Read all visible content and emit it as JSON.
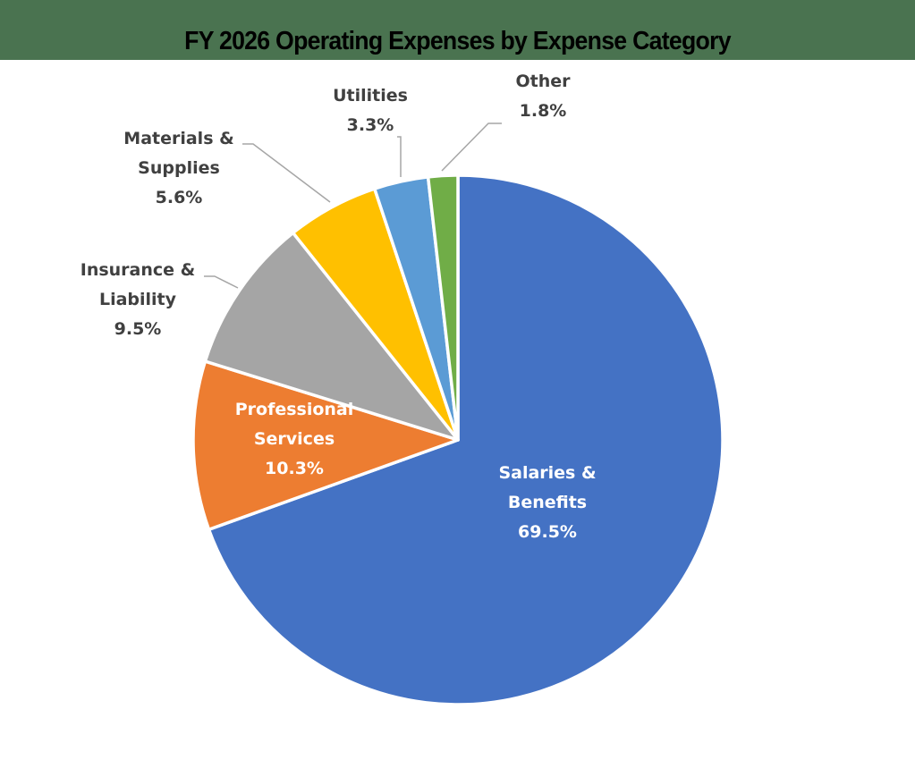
{
  "title": "FY 2026 Operating Expenses by Expense Category",
  "colors": {
    "title_band": "#4a7350",
    "leader": "#a6a6a6",
    "outside_text": "#404040",
    "inside_text": "#ffffff"
  },
  "chart_data": {
    "type": "pie",
    "title": "FY 2026 Operating Expenses by Expense Category",
    "start_angle": "12 o'clock, clockwise",
    "legend": "none (data labels on slices)",
    "categories": [
      "Salaries & Benefits",
      "Professional Services",
      "Insurance & Liability",
      "Materials & Supplies",
      "Utilities",
      "Other"
    ],
    "values": [
      69.5,
      10.3,
      9.5,
      5.6,
      3.3,
      1.8
    ],
    "colors": [
      "#4472c4",
      "#ed7d31",
      "#a5a5a5",
      "#ffc000",
      "#5b9bd5",
      "#70ad47"
    ],
    "labels": [
      {
        "lines": [
          "Salaries &",
          "Benefits"
        ],
        "pct": "69.5%",
        "position": "inside"
      },
      {
        "lines": [
          "Professional",
          "Services"
        ],
        "pct": "10.3%",
        "position": "inside"
      },
      {
        "lines": [
          "Insurance &",
          "Liability"
        ],
        "pct": "9.5%",
        "position": "outside"
      },
      {
        "lines": [
          "Materials &",
          "Supplies"
        ],
        "pct": "5.6%",
        "position": "outside"
      },
      {
        "lines": [
          "Utilities"
        ],
        "pct": "3.3%",
        "position": "outside"
      },
      {
        "lines": [
          "Other"
        ],
        "pct": "1.8%",
        "position": "outside"
      }
    ]
  }
}
